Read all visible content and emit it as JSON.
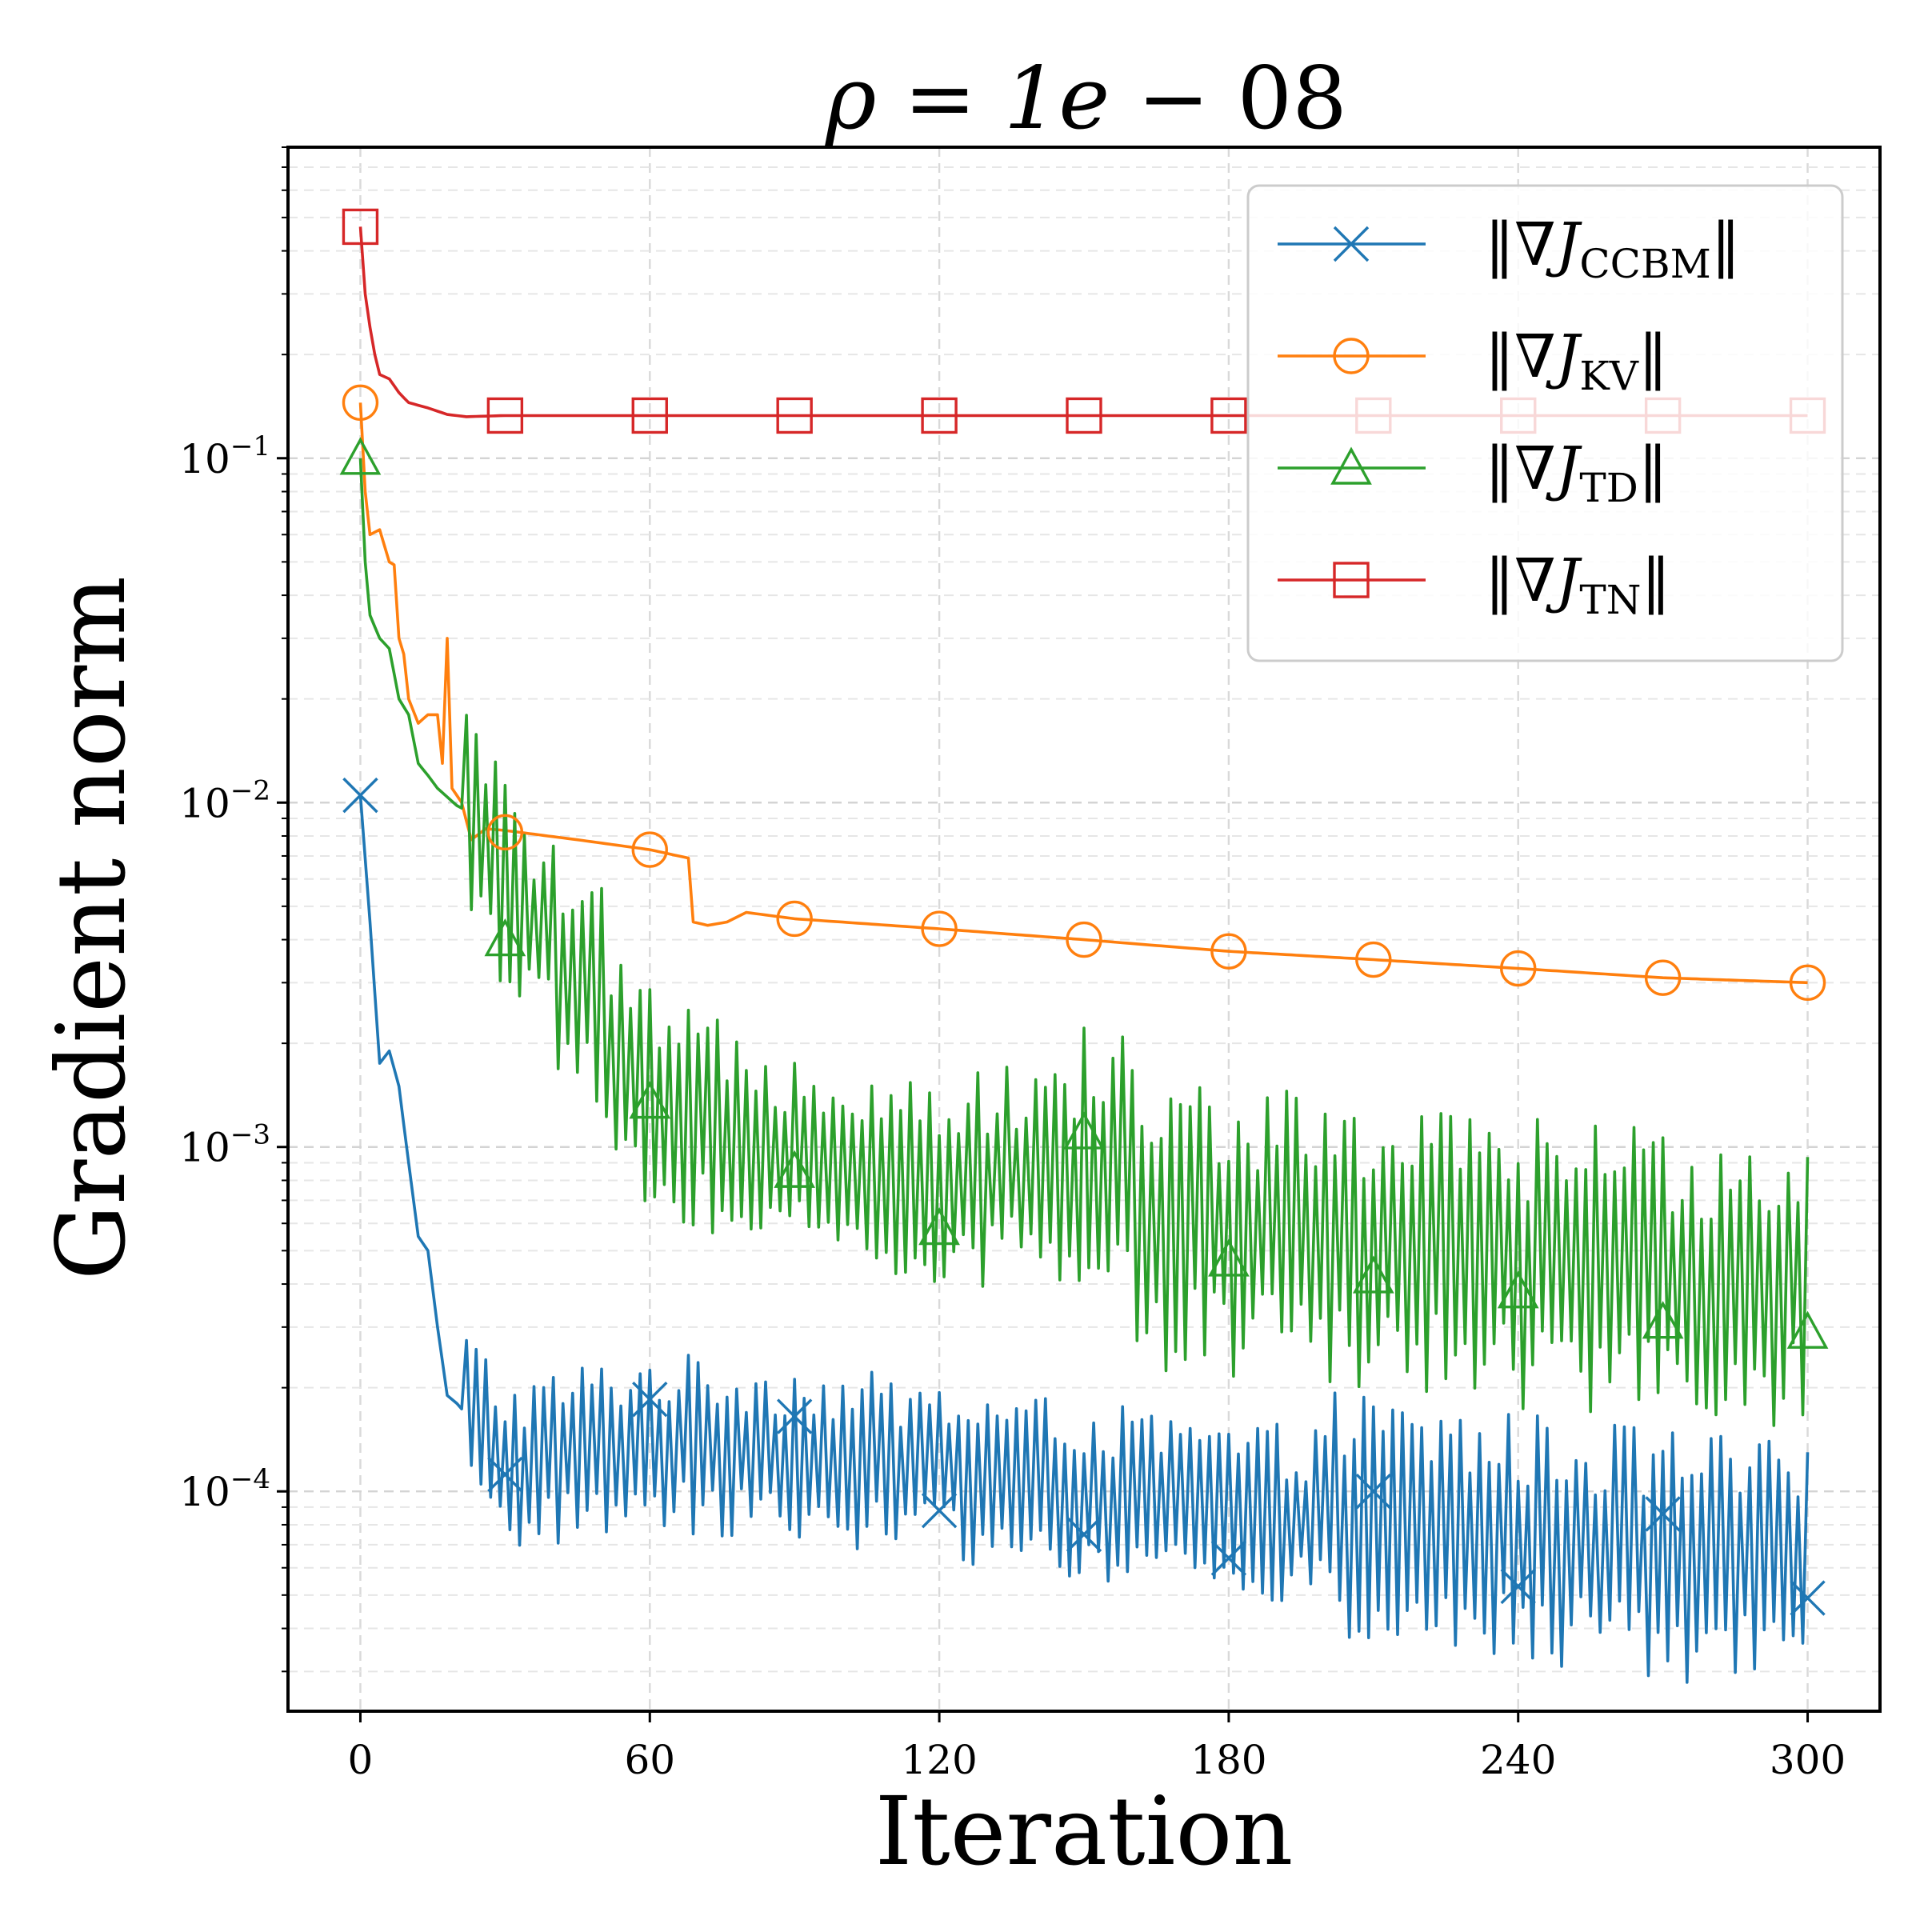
{
  "chart_data": {
    "type": "line",
    "title": "ρ = 1e − 08",
    "title_parts": {
      "symbol": "ρ",
      "value": "1e",
      "exponent": "08"
    },
    "xlabel": "Iteration",
    "ylabel": "Gradient norm",
    "xscale": "linear",
    "yscale": "log",
    "xlim": [
      -15,
      315
    ],
    "ylim": [
      2.3e-05,
      0.8
    ],
    "grid": true,
    "legend_position": "top-right",
    "x_ticks": [
      0,
      60,
      120,
      180,
      240,
      300
    ],
    "x_tick_labels": [
      "0",
      "60",
      "120",
      "180",
      "240",
      "300"
    ],
    "y_ticks": [
      0.0001,
      0.001,
      0.01,
      0.1
    ],
    "y_tick_labels": [
      {
        "base": "10",
        "exp": "−4"
      },
      {
        "base": "10",
        "exp": "−3"
      },
      {
        "base": "10",
        "exp": "−2"
      },
      {
        "base": "10",
        "exp": "−1"
      }
    ],
    "series": [
      {
        "name": "||∇J_CCBM||",
        "legend": {
          "pre": "‖∇",
          "j": "J",
          "sub": "CCBM",
          "post": "‖"
        },
        "color": "#1f77b4",
        "marker": "x",
        "marker_every": 30,
        "anchors": [
          [
            0,
            0.0105
          ],
          [
            2,
            0.0045
          ],
          [
            4,
            0.00175
          ],
          [
            6,
            0.0019
          ],
          [
            8,
            0.0015
          ],
          [
            10,
            0.0009
          ],
          [
            12,
            0.00055
          ],
          [
            14,
            0.0005
          ],
          [
            16,
            0.0003
          ],
          [
            18,
            0.00019
          ],
          [
            20,
            0.00018
          ],
          [
            25,
            0.00015
          ],
          [
            30,
            0.000115
          ],
          [
            45,
            0.00013
          ],
          [
            60,
            0.00014
          ],
          [
            90,
            0.00013
          ],
          [
            120,
            0.000115
          ],
          [
            150,
            0.0001
          ],
          [
            180,
            8.8e-05
          ],
          [
            210,
            8.2e-05
          ],
          [
            240,
            7.2e-05
          ],
          [
            270,
            6.5e-05
          ],
          [
            300,
            5.8e-05
          ]
        ],
        "oscillation": {
          "start": 22,
          "amplitude": 0.18,
          "boost_start": 200,
          "boost_amplitude": 0.26
        },
        "marker_values": [
          [
            0,
            0.0105
          ],
          [
            30,
            0.000112
          ],
          [
            60,
            0.000185
          ],
          [
            90,
            0.000165
          ],
          [
            120,
            8.8e-05
          ],
          [
            150,
            7.5e-05
          ],
          [
            180,
            6.4e-05
          ],
          [
            210,
            0.0001
          ],
          [
            240,
            5.3e-05
          ],
          [
            270,
            8.6e-05
          ],
          [
            300,
            4.9e-05
          ]
        ]
      },
      {
        "name": "||∇J_KV||",
        "legend": {
          "pre": "‖∇",
          "j": "J",
          "sub": "KV",
          "post": "‖"
        },
        "color": "#ff7f0e",
        "marker": "o",
        "marker_every": 30,
        "anchors": [
          [
            0,
            0.145
          ],
          [
            1,
            0.08
          ],
          [
            2,
            0.06
          ],
          [
            4,
            0.062
          ],
          [
            6,
            0.05
          ],
          [
            7,
            0.049
          ],
          [
            8,
            0.03
          ],
          [
            9,
            0.027
          ],
          [
            10,
            0.02
          ],
          [
            12,
            0.017
          ],
          [
            14,
            0.018
          ],
          [
            16,
            0.018
          ],
          [
            17,
            0.013
          ],
          [
            18,
            0.03
          ],
          [
            19,
            0.011
          ],
          [
            21,
            0.01
          ],
          [
            23,
            0.0078
          ],
          [
            26,
            0.0084
          ],
          [
            30,
            0.0083
          ],
          [
            45,
            0.0078
          ],
          [
            60,
            0.0073
          ],
          [
            68,
            0.0069
          ],
          [
            69,
            0.0045
          ],
          [
            72,
            0.0044
          ],
          [
            76,
            0.0045
          ],
          [
            80,
            0.0048
          ],
          [
            90,
            0.0046
          ],
          [
            120,
            0.0043
          ],
          [
            150,
            0.004
          ],
          [
            180,
            0.0037
          ],
          [
            210,
            0.0035
          ],
          [
            240,
            0.0033
          ],
          [
            270,
            0.0031
          ],
          [
            300,
            0.003
          ]
        ],
        "oscillation": {
          "start": 400,
          "amplitude": 0
        },
        "marker_values": [
          [
            0,
            0.145
          ],
          [
            30,
            0.0082
          ],
          [
            60,
            0.0073
          ],
          [
            90,
            0.0046
          ],
          [
            120,
            0.0043
          ],
          [
            150,
            0.004
          ],
          [
            180,
            0.0037
          ],
          [
            210,
            0.0035
          ],
          [
            240,
            0.0033
          ],
          [
            270,
            0.0031
          ],
          [
            300,
            0.003
          ]
        ]
      },
      {
        "name": "||∇J_TD||",
        "legend": {
          "pre": "‖∇",
          "j": "J",
          "sub": "TD",
          "post": "‖"
        },
        "color": "#2ca02c",
        "marker": "^",
        "marker_every": 30,
        "anchors": [
          [
            0,
            0.1
          ],
          [
            1,
            0.05
          ],
          [
            2,
            0.035
          ],
          [
            4,
            0.03
          ],
          [
            6,
            0.028
          ],
          [
            8,
            0.02
          ],
          [
            10,
            0.018
          ],
          [
            12,
            0.013
          ],
          [
            14,
            0.012
          ],
          [
            16,
            0.011
          ],
          [
            20,
            0.0098
          ],
          [
            25,
            0.009
          ],
          [
            30,
            0.0055
          ],
          [
            35,
            0.0045
          ],
          [
            40,
            0.004
          ],
          [
            42,
            0.003
          ],
          [
            50,
            0.0028
          ],
          [
            52,
            0.0017
          ],
          [
            58,
            0.0015
          ],
          [
            60,
            0.0014
          ],
          [
            65,
            0.0012
          ],
          [
            70,
            0.0012
          ],
          [
            80,
            0.0011
          ],
          [
            88,
            0.00095
          ],
          [
            100,
            0.0009
          ],
          [
            120,
            0.00078
          ],
          [
            140,
            0.00085
          ],
          [
            160,
            0.00085
          ],
          [
            161,
            0.00062
          ],
          [
            180,
            0.00057
          ],
          [
            210,
            0.0005
          ],
          [
            240,
            0.00046
          ],
          [
            270,
            0.00043
          ],
          [
            300,
            0.0004
          ]
        ],
        "oscillation": {
          "start": 22,
          "amplitude": 0.22,
          "boost_start": 150,
          "boost_amplitude": 0.3
        },
        "marker_values": [
          [
            0,
            0.1
          ],
          [
            30,
            0.004
          ],
          [
            60,
            0.00135
          ],
          [
            90,
            0.00085
          ],
          [
            120,
            0.00058
          ],
          [
            150,
            0.0011
          ],
          [
            180,
            0.00047
          ],
          [
            210,
            0.00042
          ],
          [
            240,
            0.00038
          ],
          [
            270,
            0.00031
          ],
          [
            300,
            0.00029
          ]
        ]
      },
      {
        "name": "||∇J_TN||",
        "legend": {
          "pre": "‖∇",
          "j": "J",
          "sub": "TN",
          "post": "‖"
        },
        "color": "#d62728",
        "marker": "s",
        "marker_every": 30,
        "anchors": [
          [
            0,
            0.47
          ],
          [
            1,
            0.3
          ],
          [
            2,
            0.24
          ],
          [
            3,
            0.2
          ],
          [
            4,
            0.175
          ],
          [
            6,
            0.17
          ],
          [
            8,
            0.155
          ],
          [
            10,
            0.145
          ],
          [
            14,
            0.14
          ],
          [
            18,
            0.134
          ],
          [
            22,
            0.132
          ],
          [
            30,
            0.133
          ],
          [
            300,
            0.133
          ]
        ],
        "oscillation": {
          "start": 400,
          "amplitude": 0
        },
        "marker_values": [
          [
            0,
            0.47
          ],
          [
            30,
            0.133
          ],
          [
            60,
            0.133
          ],
          [
            90,
            0.133
          ],
          [
            120,
            0.133
          ],
          [
            150,
            0.133
          ],
          [
            180,
            0.133
          ],
          [
            210,
            0.133
          ],
          [
            240,
            0.133
          ],
          [
            270,
            0.133
          ],
          [
            300,
            0.133
          ]
        ]
      }
    ]
  }
}
